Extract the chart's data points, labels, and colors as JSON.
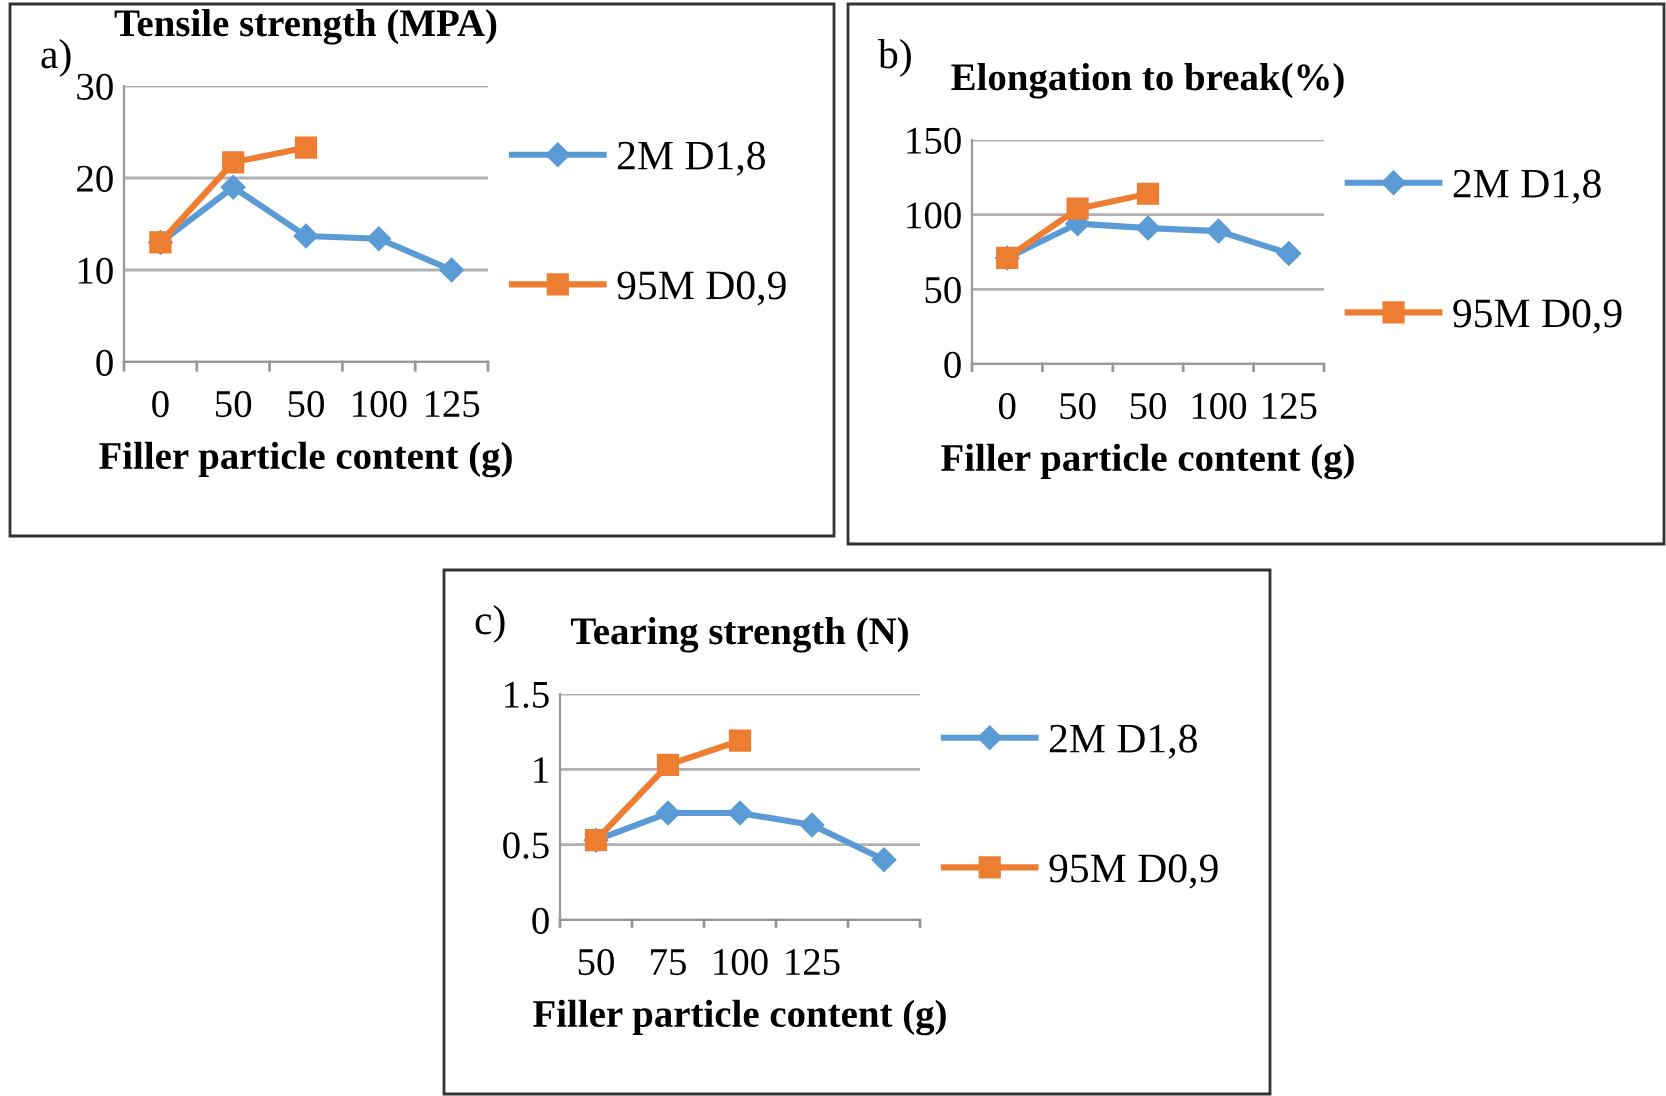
{
  "chart_data": [
    {
      "type": "line",
      "title": "Tensile strength (MPA)",
      "xlabel": "Filler particle content (g)",
      "annotations": [
        "a)"
      ],
      "categories": [
        "0",
        "50",
        "50",
        "100",
        "125"
      ],
      "ylim": [
        0,
        30
      ],
      "yticks": [
        0,
        10,
        20,
        30
      ],
      "grid": "y",
      "legend": "right",
      "series": [
        {
          "name": "2M D1,8",
          "color": "#5b9bd5",
          "marker": "diamond",
          "values": [
            13,
            19,
            13.7,
            13.4,
            10
          ]
        },
        {
          "name": "95M D0,9",
          "color": "#ed7d31",
          "marker": "square",
          "values": [
            13,
            21.7,
            23.3,
            null,
            null
          ]
        }
      ]
    },
    {
      "type": "line",
      "title": "Elongation to break(%)",
      "xlabel": "Filler particle content (g)",
      "annotations": [
        "b)"
      ],
      "categories": [
        "0",
        "50",
        "50",
        "100",
        "125"
      ],
      "ylim": [
        0,
        150
      ],
      "yticks": [
        0,
        50,
        100,
        150
      ],
      "grid": "y",
      "legend": "right",
      "series": [
        {
          "name": "2M D1,8",
          "color": "#5b9bd5",
          "marker": "diamond",
          "values": [
            71,
            94,
            91,
            89,
            74
          ]
        },
        {
          "name": "95M D0,9",
          "color": "#ed7d31",
          "marker": "square",
          "values": [
            71,
            104,
            114,
            null,
            null
          ]
        }
      ]
    },
    {
      "type": "line",
      "title": "Tearing strength (N)",
      "xlabel": "Filler particle content (g)",
      "annotations": [
        "c)"
      ],
      "categories": [
        "50",
        "75",
        "100",
        "125",
        null
      ],
      "ylim": [
        0,
        1.5
      ],
      "yticks": [
        0,
        0.5,
        1,
        1.5
      ],
      "grid": "y",
      "legend": "right",
      "series": [
        {
          "name": "2M D1,8",
          "color": "#5b9bd5",
          "marker": "diamond",
          "values": [
            0.53,
            0.71,
            0.71,
            0.63,
            0.4
          ]
        },
        {
          "name": "95M D0,9",
          "color": "#ed7d31",
          "marker": "square",
          "values": [
            0.53,
            1.03,
            1.19,
            null,
            null
          ]
        }
      ]
    }
  ]
}
